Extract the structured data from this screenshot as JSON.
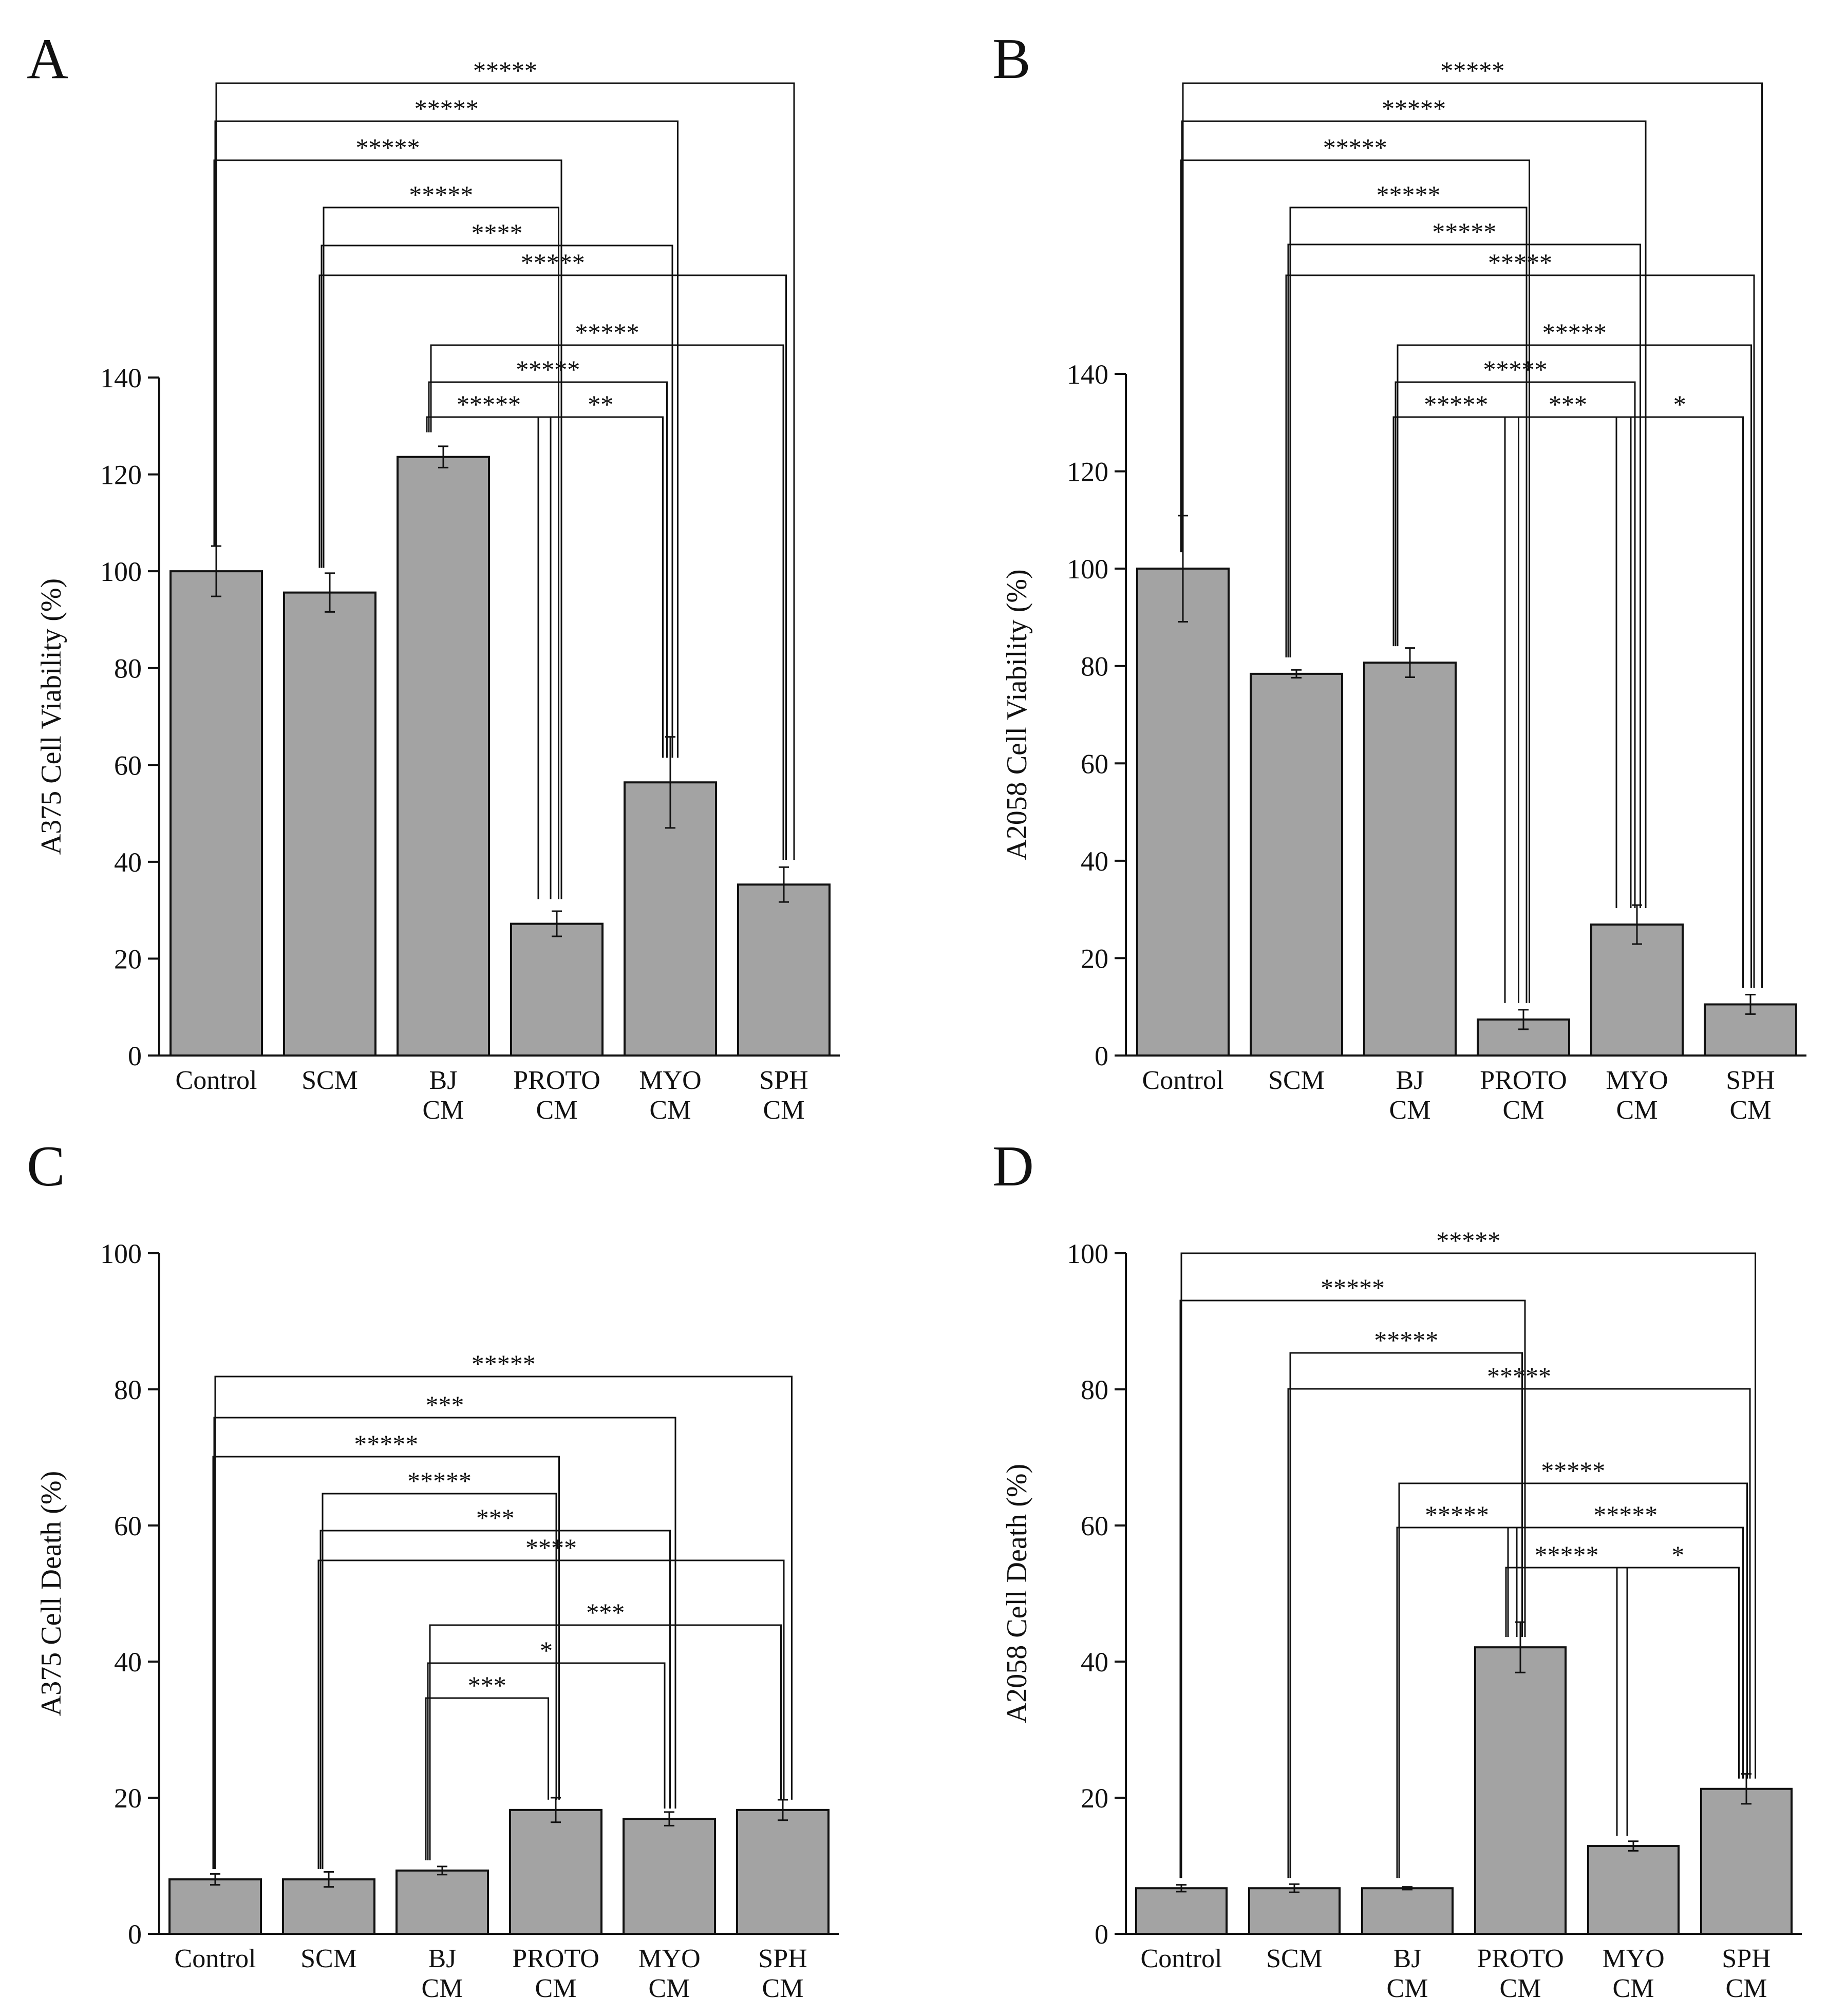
{
  "colors": {
    "bar_fill": "#a3a3a3",
    "stroke": "#111111",
    "background": "#ffffff"
  },
  "chart_data": [
    {
      "panel": "A",
      "type": "bar",
      "ylabel": "A375 Cell Viability (%)",
      "ylim": [
        0,
        140
      ],
      "yticks": [
        0,
        20,
        40,
        60,
        80,
        100,
        120,
        140
      ],
      "categories": [
        "Control",
        "SCM",
        "BJ CM",
        "PROTO CM",
        "MYO CM",
        "SPH CM"
      ],
      "category_lines": [
        [
          "Control"
        ],
        [
          "SCM"
        ],
        [
          "BJ",
          "CM"
        ],
        [
          "PROTO",
          "CM"
        ],
        [
          "MYO",
          "CM"
        ],
        [
          "SPH",
          "CM"
        ]
      ],
      "values": [
        100,
        95.6,
        123.6,
        27.2,
        56.4,
        35.3
      ],
      "errors": [
        5.2,
        4.0,
        2.2,
        2.6,
        9.4,
        3.6
      ],
      "comparisons": [
        {
          "from": 0,
          "to": 5,
          "label": "*****"
        },
        {
          "from": 0,
          "to": 4,
          "label": "*****"
        },
        {
          "from": 0,
          "to": 3,
          "label": "*****"
        },
        {
          "from": 1,
          "to": 3,
          "label": "*****"
        },
        {
          "from": 1,
          "to": 4,
          "label": "****"
        },
        {
          "from": 1,
          "to": 5,
          "label": "*****"
        },
        {
          "from": 2,
          "to": 5,
          "label": "*****"
        },
        {
          "from": 2,
          "to": 4,
          "label": "*****"
        },
        {
          "from": 2,
          "to": 3,
          "label": "*****"
        },
        {
          "from": 3,
          "to": 4,
          "label": "**"
        }
      ]
    },
    {
      "panel": "B",
      "type": "bar",
      "ylabel": "A2058 Cell Viability (%)",
      "ylim": [
        0,
        140
      ],
      "yticks": [
        0,
        20,
        40,
        60,
        80,
        100,
        120,
        140
      ],
      "categories": [
        "Control",
        "SCM",
        "BJ CM",
        "PROTO CM",
        "MYO CM",
        "SPH CM"
      ],
      "category_lines": [
        [
          "Control"
        ],
        [
          "SCM"
        ],
        [
          "BJ",
          "CM"
        ],
        [
          "PROTO",
          "CM"
        ],
        [
          "MYO",
          "CM"
        ],
        [
          "SPH",
          "CM"
        ]
      ],
      "values": [
        100,
        78.4,
        80.7,
        7.4,
        26.9,
        10.5
      ],
      "errors": [
        10.9,
        0.8,
        3.0,
        2.0,
        4.0,
        2.0
      ],
      "comparisons": [
        {
          "from": 0,
          "to": 5,
          "label": "*****"
        },
        {
          "from": 0,
          "to": 4,
          "label": "*****"
        },
        {
          "from": 0,
          "to": 3,
          "label": "*****"
        },
        {
          "from": 1,
          "to": 3,
          "label": "*****"
        },
        {
          "from": 1,
          "to": 4,
          "label": "*****"
        },
        {
          "from": 1,
          "to": 5,
          "label": "*****"
        },
        {
          "from": 2,
          "to": 5,
          "label": "*****"
        },
        {
          "from": 2,
          "to": 4,
          "label": "*****"
        },
        {
          "from": 2,
          "to": 3,
          "label": "*****"
        },
        {
          "from": 3,
          "to": 4,
          "label": "***"
        },
        {
          "from": 4,
          "to": 5,
          "label": "*"
        }
      ]
    },
    {
      "panel": "C",
      "type": "bar",
      "ylabel": "A375 Cell Death (%)",
      "ylim": [
        0,
        100
      ],
      "yticks": [
        0,
        20,
        40,
        60,
        80,
        100
      ],
      "categories": [
        "Control",
        "SCM",
        "BJ CM",
        "PROTO CM",
        "MYO CM",
        "SPH CM"
      ],
      "category_lines": [
        [
          "Control"
        ],
        [
          "SCM"
        ],
        [
          "BJ",
          "CM"
        ],
        [
          "PROTO",
          "CM"
        ],
        [
          "MYO",
          "CM"
        ],
        [
          "SPH",
          "CM"
        ]
      ],
      "values": [
        8.0,
        8.0,
        9.3,
        18.2,
        16.9,
        18.2
      ],
      "errors": [
        0.8,
        1.1,
        0.6,
        1.8,
        1.0,
        1.5
      ],
      "comparisons": [
        {
          "from": 0,
          "to": 5,
          "label": "*****"
        },
        {
          "from": 0,
          "to": 4,
          "label": "***"
        },
        {
          "from": 0,
          "to": 3,
          "label": "*****"
        },
        {
          "from": 1,
          "to": 3,
          "label": "*****"
        },
        {
          "from": 1,
          "to": 4,
          "label": "***"
        },
        {
          "from": 1,
          "to": 5,
          "label": "****"
        },
        {
          "from": 2,
          "to": 5,
          "label": "***"
        },
        {
          "from": 2,
          "to": 4,
          "label": "*"
        },
        {
          "from": 2,
          "to": 3,
          "label": "***"
        }
      ]
    },
    {
      "panel": "D",
      "type": "bar",
      "ylabel": "A2058 Cell Death (%)",
      "ylim": [
        0,
        100
      ],
      "yticks": [
        0,
        20,
        40,
        60,
        80,
        100
      ],
      "categories": [
        "Control",
        "SCM",
        "BJ CM",
        "PROTO CM",
        "MYO CM",
        "SPH CM"
      ],
      "category_lines": [
        [
          "Control"
        ],
        [
          "SCM"
        ],
        [
          "BJ",
          "CM"
        ],
        [
          "PROTO",
          "CM"
        ],
        [
          "MYO",
          "CM"
        ],
        [
          "SPH",
          "CM"
        ]
      ],
      "values": [
        6.7,
        6.7,
        6.7,
        42.1,
        12.9,
        21.3
      ],
      "errors": [
        0.5,
        0.6,
        0.2,
        3.7,
        0.7,
        2.2
      ],
      "comparisons": [
        {
          "from": 0,
          "to": 5,
          "label": "*****"
        },
        {
          "from": 0,
          "to": 3,
          "label": "*****"
        },
        {
          "from": 1,
          "to": 3,
          "label": "*****"
        },
        {
          "from": 1,
          "to": 5,
          "label": "*****"
        },
        {
          "from": 2,
          "to": 5,
          "label": "*****"
        },
        {
          "from": 2,
          "to": 3,
          "label": "*****"
        },
        {
          "from": 3,
          "to": 5,
          "label": "*****"
        },
        {
          "from": 3,
          "to": 4,
          "label": "*****"
        },
        {
          "from": 4,
          "to": 5,
          "label": "*"
        }
      ]
    }
  ]
}
